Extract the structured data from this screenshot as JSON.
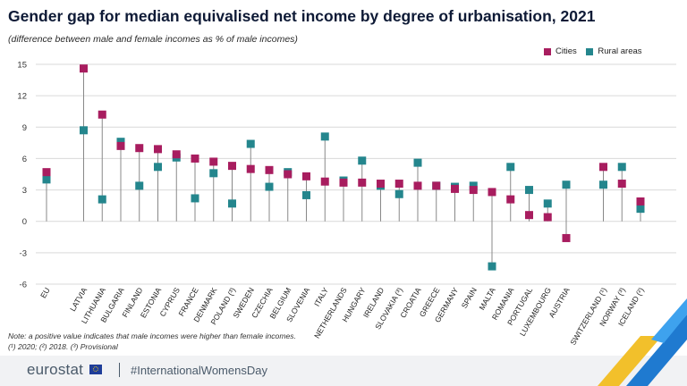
{
  "title": "Gender gap for median equivalised net income by degree of urbanisation, 2021",
  "subtitle": "(difference between male and female incomes as % of male incomes)",
  "legend": {
    "cities": "Cities",
    "rural": "Rural areas"
  },
  "colors": {
    "cities": "#a81d5f",
    "rural": "#24868d",
    "stem": "#888888",
    "grid": "#d9d9d9"
  },
  "note": {
    "line1": "Note: a positive value indicates that male incomes were higher than female incomes.",
    "line2": "(¹) 2020; (²) 2018. (³) Provisional"
  },
  "footer": {
    "logo": "eurostat",
    "hashtag": "#InternationalWomensDay"
  },
  "chart_data": {
    "type": "scatter",
    "title": "Gender gap for median equivalised net income by degree of urbanisation, 2021",
    "ylim": [
      -6,
      15
    ],
    "yticks": [
      -6,
      -3,
      0,
      3,
      6,
      9,
      12,
      15
    ],
    "grid": true,
    "legend_position": "top-right",
    "categories": [
      "EU",
      "LATVIA",
      "LITHUANIA",
      "BULGARIA",
      "FINLAND",
      "ESTONIA",
      "CYPRUS",
      "FRANCE",
      "DENMARK",
      "POLAND (³)",
      "SWEDEN",
      "CZECHIA",
      "BELGIUM",
      "SLOVENIA",
      "ITALY",
      "NETHERLANDS",
      "HUNGARY",
      "IRELAND",
      "SLOVAKIA (³)",
      "CROATIA",
      "GREECE",
      "GERMANY",
      "SPAIN",
      "MALTA",
      "ROMANIA",
      "PORTUGAL",
      "LUXEMBOURG",
      "AUSTRIA",
      "SWITZERLAND (¹)",
      "NORWAY (³)",
      "ICELAND (²)"
    ],
    "series": [
      {
        "name": "Cities",
        "values": [
          4.7,
          14.6,
          10.2,
          7.2,
          7.0,
          6.9,
          6.4,
          6.0,
          5.7,
          5.3,
          5.0,
          4.9,
          4.5,
          4.3,
          3.8,
          3.7,
          3.7,
          3.6,
          3.6,
          3.4,
          3.4,
          3.1,
          3.0,
          2.8,
          2.1,
          0.6,
          0.4,
          -1.6,
          5.2,
          3.6,
          1.9
        ]
      },
      {
        "name": "Rural areas",
        "values": [
          4.0,
          8.7,
          2.1,
          7.6,
          3.4,
          5.2,
          6.1,
          2.2,
          4.6,
          1.7,
          7.4,
          3.3,
          4.7,
          2.5,
          8.1,
          3.9,
          5.8,
          3.4,
          2.6,
          5.6,
          3.4,
          3.3,
          3.4,
          -4.3,
          5.2,
          3.0,
          1.7,
          3.5,
          3.5,
          5.2,
          1.2
        ]
      }
    ]
  }
}
